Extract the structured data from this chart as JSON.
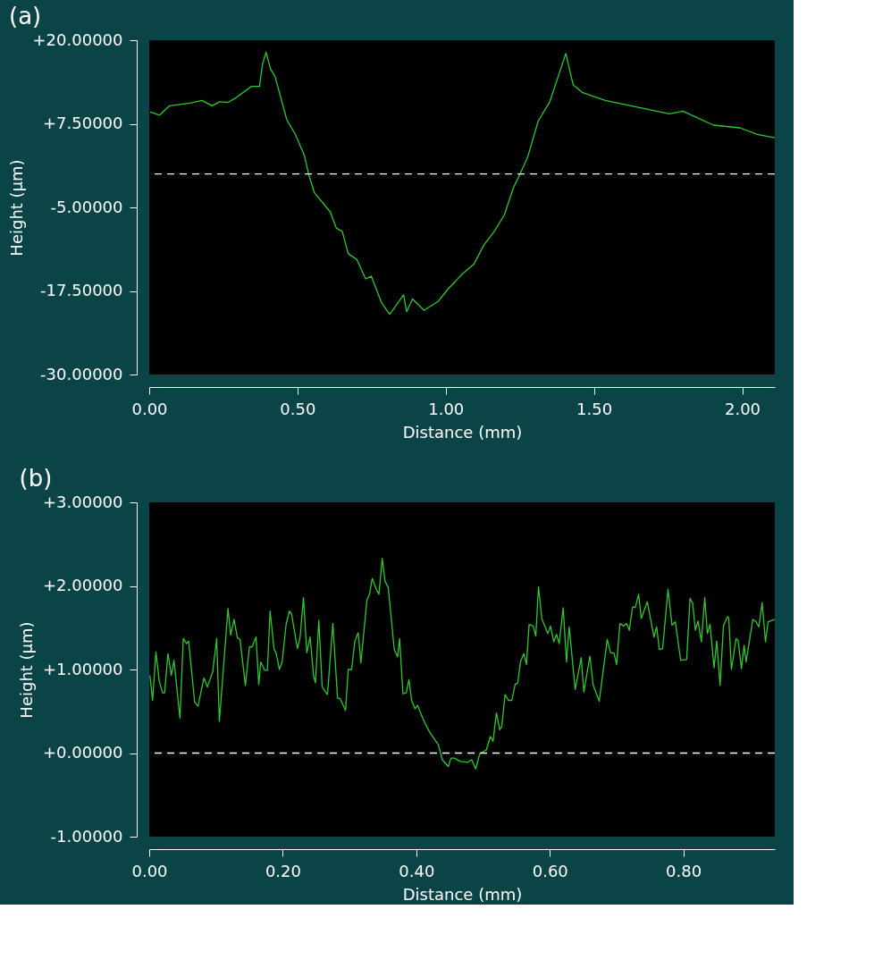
{
  "chart_data": [
    {
      "type": "line",
      "title": "(a)",
      "xlabel": "Distance (mm)",
      "ylabel": "Height (µm)",
      "grid": false,
      "line_style": "solid",
      "xlim": [
        0,
        2.11
      ],
      "ylim": [
        -30,
        20
      ],
      "xticks": [
        {
          "value": 0,
          "label": "0.00"
        },
        {
          "value": 0.5,
          "label": "0.50"
        },
        {
          "value": 1.0,
          "label": "1.00"
        },
        {
          "value": 1.5,
          "label": "1.50"
        },
        {
          "value": 2.0,
          "label": "2.00"
        }
      ],
      "yticks": [
        {
          "value": -30,
          "label": "-30.00000"
        },
        {
          "value": -17.5,
          "label": "-17.50000"
        },
        {
          "value": -5,
          "label": "-5.00000"
        },
        {
          "value": 7.5,
          "label": "+7.50000"
        },
        {
          "value": 20,
          "label": "+20.00000"
        }
      ],
      "ref_lines": [
        {
          "axis": "y",
          "value": 0,
          "color": "#ffffff",
          "line_style": "dashed"
        }
      ],
      "series": [
        {
          "color": "#2ec82e",
          "x": [
            0.002,
            0.035,
            0.069,
            0.138,
            0.178,
            0.212,
            0.237,
            0.266,
            0.296,
            0.345,
            0.372,
            0.382,
            0.394,
            0.409,
            0.424,
            0.464,
            0.493,
            0.523,
            0.538,
            0.557,
            0.611,
            0.631,
            0.651,
            0.671,
            0.7,
            0.73,
            0.749,
            0.784,
            0.811,
            0.858,
            0.868,
            0.888,
            0.927,
            0.976,
            1.006,
            1.055,
            1.095,
            1.129,
            1.164,
            1.198,
            1.228,
            1.252,
            1.277,
            1.312,
            1.351,
            1.381,
            1.405,
            1.43,
            1.46,
            1.538,
            1.657,
            1.755,
            1.8,
            1.903,
            1.992,
            2.051,
            2.11
          ],
          "values": [
            9.3,
            8.8,
            10.2,
            10.6,
            11.0,
            10.2,
            10.8,
            10.7,
            11.5,
            13.1,
            13.1,
            16.4,
            18.2,
            15.7,
            14.6,
            8.1,
            5.9,
            2.8,
            -0.1,
            -2.8,
            -5.7,
            -8.1,
            -8.6,
            -11.9,
            -12.8,
            -15.7,
            -15.3,
            -19.3,
            -21.0,
            -18.1,
            -20.6,
            -18.7,
            -20.4,
            -19.0,
            -17.3,
            -15.0,
            -13.5,
            -10.6,
            -8.6,
            -6.1,
            -2.1,
            0.1,
            2.6,
            7.9,
            10.8,
            14.8,
            18.0,
            13.3,
            12.2,
            11.0,
            9.9,
            9.0,
            9.4,
            7.3,
            6.9,
            5.9,
            5.4
          ]
        }
      ]
    },
    {
      "type": "line",
      "title": "(b)",
      "xlabel": "Distance (mm)",
      "ylabel": "Height (µm)",
      "grid": false,
      "line_style": "solid",
      "xlim": [
        0,
        0.937
      ],
      "ylim": [
        -1,
        3
      ],
      "xticks": [
        {
          "value": 0,
          "label": "0.00"
        },
        {
          "value": 0.2,
          "label": "0.20"
        },
        {
          "value": 0.4,
          "label": "0.40"
        },
        {
          "value": 0.6,
          "label": "0.60"
        },
        {
          "value": 0.8,
          "label": "0.80"
        }
      ],
      "yticks": [
        {
          "value": -1,
          "label": "-1.00000"
        },
        {
          "value": 0,
          "label": "+0.00000"
        },
        {
          "value": 1,
          "label": "+1.00000"
        },
        {
          "value": 2,
          "label": "+2.00000"
        },
        {
          "value": 3,
          "label": "+3.00000"
        }
      ],
      "ref_lines": [
        {
          "axis": "y",
          "value": 0,
          "color": "#ffffff",
          "line_style": "dashed"
        }
      ],
      "series": [
        {
          "color": "#2ec82e",
          "x": [
            0.001,
            0.005,
            0.01,
            0.015,
            0.02,
            0.023,
            0.028,
            0.033,
            0.037,
            0.046,
            0.051,
            0.056,
            0.059,
            0.068,
            0.073,
            0.082,
            0.087,
            0.095,
            0.101,
            0.105,
            0.118,
            0.122,
            0.127,
            0.132,
            0.136,
            0.144,
            0.15,
            0.154,
            0.16,
            0.164,
            0.167,
            0.173,
            0.177,
            0.181,
            0.187,
            0.19,
            0.195,
            0.199,
            0.205,
            0.21,
            0.213,
            0.222,
            0.226,
            0.231,
            0.236,
            0.241,
            0.246,
            0.249,
            0.254,
            0.259,
            0.267,
            0.275,
            0.282,
            0.286,
            0.294,
            0.298,
            0.303,
            0.308,
            0.313,
            0.317,
            0.326,
            0.33,
            0.334,
            0.34,
            0.344,
            0.349,
            0.353,
            0.358,
            0.367,
            0.372,
            0.375,
            0.38,
            0.385,
            0.389,
            0.393,
            0.398,
            0.402,
            0.411,
            0.42,
            0.433,
            0.439,
            0.448,
            0.452,
            0.457,
            0.466,
            0.477,
            0.483,
            0.489,
            0.495,
            0.505,
            0.511,
            0.515,
            0.52,
            0.525,
            0.528,
            0.533,
            0.538,
            0.543,
            0.548,
            0.552,
            0.556,
            0.561,
            0.565,
            0.569,
            0.575,
            0.579,
            0.583,
            0.588,
            0.597,
            0.601,
            0.606,
            0.61,
            0.614,
            0.62,
            0.625,
            0.629,
            0.638,
            0.647,
            0.651,
            0.66,
            0.665,
            0.674,
            0.686,
            0.691,
            0.696,
            0.7,
            0.705,
            0.71,
            0.715,
            0.719,
            0.724,
            0.728,
            0.733,
            0.737,
            0.746,
            0.756,
            0.76,
            0.764,
            0.769,
            0.777,
            0.783,
            0.788,
            0.796,
            0.805,
            0.81,
            0.814,
            0.818,
            0.822,
            0.827,
            0.832,
            0.836,
            0.84,
            0.846,
            0.85,
            0.855,
            0.86,
            0.866,
            0.868,
            0.872,
            0.879,
            0.882,
            0.887,
            0.891,
            0.894,
            0.904,
            0.909,
            0.913,
            0.918,
            0.923,
            0.927,
            0.937
          ],
          "values": [
            0.93,
            0.63,
            1.21,
            0.86,
            0.72,
            0.72,
            1.19,
            0.93,
            1.11,
            0.42,
            1.37,
            1.31,
            1.34,
            0.61,
            0.56,
            0.9,
            0.79,
            0.97,
            1.37,
            0.38,
            1.73,
            1.41,
            1.6,
            1.38,
            1.36,
            0.81,
            1.27,
            1.27,
            1.39,
            0.82,
            1.09,
            0.99,
            0.99,
            1.7,
            1.24,
            1.2,
            1.0,
            1.09,
            1.54,
            1.7,
            1.67,
            1.25,
            1.39,
            1.86,
            1.2,
            1.39,
            0.93,
            0.84,
            1.59,
            0.79,
            0.7,
            1.55,
            0.66,
            0.65,
            0.51,
            1.0,
            1.0,
            1.34,
            1.44,
            1.08,
            1.83,
            1.9,
            2.09,
            1.96,
            1.9,
            2.33,
            2.06,
            1.98,
            1.24,
            1.15,
            1.37,
            0.71,
            0.72,
            0.88,
            0.63,
            0.53,
            0.57,
            0.39,
            0.25,
            0.1,
            -0.08,
            -0.16,
            -0.06,
            -0.06,
            -0.1,
            -0.11,
            -0.08,
            -0.19,
            -0.01,
            0.04,
            0.2,
            0.14,
            0.48,
            0.28,
            0.32,
            0.7,
            0.63,
            0.63,
            0.82,
            0.84,
            1.09,
            1.19,
            1.06,
            1.54,
            1.52,
            1.4,
            1.99,
            1.61,
            1.43,
            1.52,
            1.33,
            1.42,
            1.31,
            1.74,
            1.09,
            1.51,
            0.76,
            1.14,
            0.73,
            1.16,
            0.81,
            0.62,
            1.36,
            1.2,
            1.2,
            1.06,
            1.55,
            1.52,
            1.55,
            1.47,
            1.75,
            1.74,
            1.9,
            1.61,
            1.81,
            1.39,
            1.51,
            1.24,
            1.25,
            1.96,
            1.53,
            1.57,
            1.11,
            1.12,
            1.85,
            1.79,
            1.47,
            1.58,
            1.33,
            1.86,
            1.43,
            1.54,
            1.02,
            1.34,
            0.81,
            1.52,
            1.63,
            1.62,
            1.0,
            1.37,
            1.35,
            1.01,
            1.29,
            1.09,
            1.6,
            1.57,
            1.51,
            1.8,
            1.33,
            1.57,
            1.6
          ]
        }
      ]
    }
  ]
}
